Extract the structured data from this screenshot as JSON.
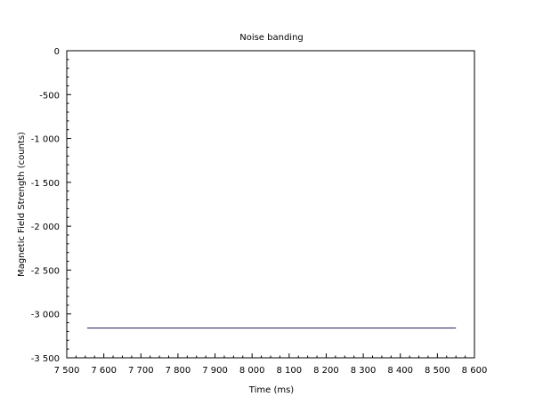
{
  "chart_data": {
    "type": "line",
    "title": "Noise banding",
    "xlabel": "Time (ms)",
    "ylabel": "Magnetic Field Strength (counts)",
    "xlim": [
      7500,
      8600
    ],
    "ylim": [
      -3500,
      0
    ],
    "x_ticks": [
      7500,
      7600,
      7700,
      7800,
      7900,
      8000,
      8100,
      8200,
      8300,
      8400,
      8500,
      8600
    ],
    "x_tick_labels": [
      "7 500",
      "7 600",
      "7 700",
      "7 800",
      "7 900",
      "8 000",
      "8 100",
      "8 200",
      "8 300",
      "8 400",
      "8 500",
      "8 600"
    ],
    "y_ticks": [
      0,
      -500,
      -1000,
      -1500,
      -2000,
      -2500,
      -3000,
      -3500
    ],
    "y_tick_labels": [
      "0",
      "-500",
      "-1 000",
      "-1 500",
      "-2 000",
      "-2 500",
      "-3 000",
      "-3 500"
    ],
    "grid": false,
    "series": [
      {
        "color": "#1f1fa8",
        "x": [
          7555,
          8550
        ],
        "y": [
          -3160,
          -3160
        ]
      }
    ]
  }
}
